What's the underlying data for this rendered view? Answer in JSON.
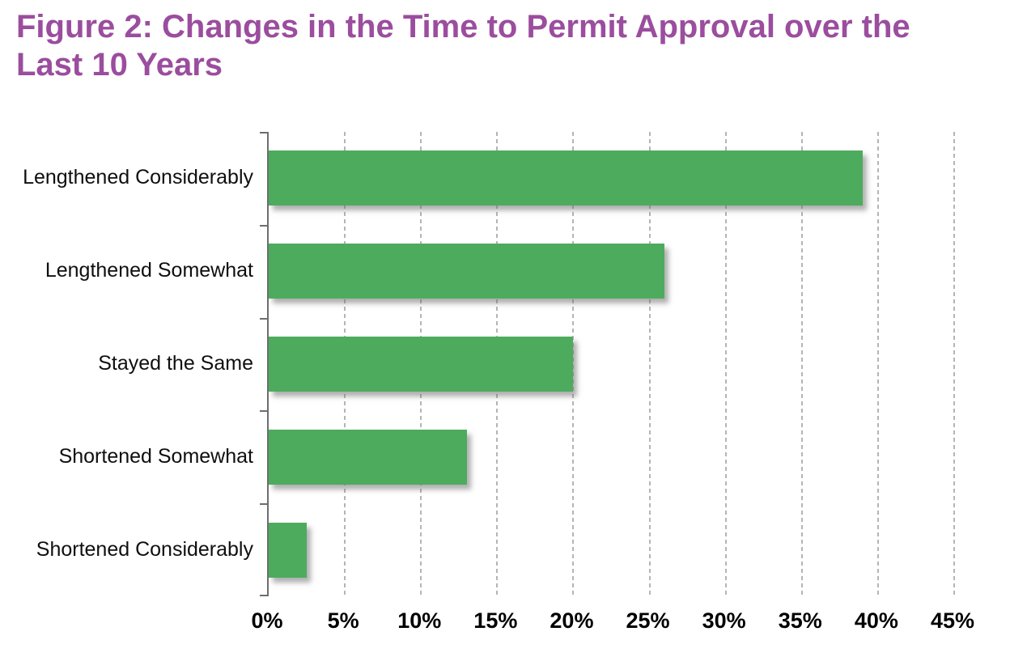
{
  "figure_title": "Figure 2: Changes in the Time to Permit Approval over the Last 10 Years",
  "colors": {
    "title": "#9b4d9e",
    "bar": "#4dab5e",
    "axis": "#6e6e6e",
    "gridline": "#b5b5b5",
    "label_text": "#0f0f0f"
  },
  "chart_data": {
    "type": "bar",
    "orientation": "horizontal",
    "title": "Figure 2: Changes in the Time to Permit Approval over the Last 10 Years",
    "categories": [
      "Lengthened Considerably",
      "Lengthened Somewhat",
      "Stayed the Same",
      "Shortened Somewhat",
      "Shortened Considerably"
    ],
    "values": [
      39,
      26,
      20,
      13,
      2.5
    ],
    "unit": "%",
    "xlabel": "",
    "ylabel": "",
    "xlim": [
      0,
      45
    ],
    "x_tick_step": 5,
    "x_ticks": [
      "0%",
      "5%",
      "10%",
      "15%",
      "20%",
      "25%",
      "30%",
      "35%",
      "40%",
      "45%"
    ],
    "grid": "vertical-dashed",
    "legend": "none",
    "bar_color": "#4dab5e"
  }
}
